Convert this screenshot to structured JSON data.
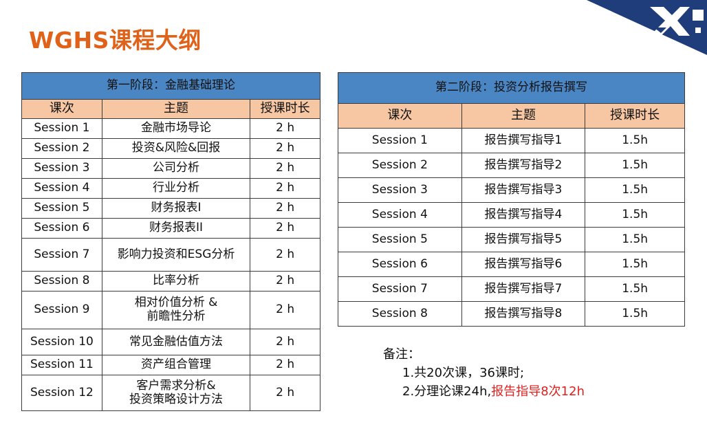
{
  "page": {
    "title": "WGHS课程大纲"
  },
  "stage1": {
    "heading": "第一阶段：金融基础理论",
    "columns": [
      "课次",
      "主题",
      "授课时长"
    ],
    "rows": [
      {
        "session": "Session 1",
        "topic": [
          "金融市场导论"
        ],
        "duration": "2 h"
      },
      {
        "session": "Session 2",
        "topic": [
          "投资&风险&回报"
        ],
        "duration": "2 h"
      },
      {
        "session": "Session 3",
        "topic": [
          "公司分析"
        ],
        "duration": "2 h"
      },
      {
        "session": "Session 4",
        "topic": [
          "行业分析"
        ],
        "duration": "2 h"
      },
      {
        "session": "Session 5",
        "topic": [
          "财务报表I"
        ],
        "duration": "2 h"
      },
      {
        "session": "Session 6",
        "topic": [
          "财务报表II"
        ],
        "duration": "2 h"
      },
      {
        "session": "Session 7",
        "topic": [
          "影响力投资和ESG分析"
        ],
        "duration": "2 h"
      },
      {
        "session": "Session 8",
        "topic": [
          "比率分析"
        ],
        "duration": "2 h"
      },
      {
        "session": "Session 9",
        "topic": [
          "相对价值分析 &",
          "前瞻性分析"
        ],
        "duration": "2 h"
      },
      {
        "session": "Session 10",
        "topic": [
          "常见金融估值方法"
        ],
        "duration": "2 h"
      },
      {
        "session": "Session 11",
        "topic": [
          "资产组合管理"
        ],
        "duration": "2 h"
      },
      {
        "session": "Session 12",
        "topic": [
          "客户需求分析&",
          "投资策略设计方法"
        ],
        "duration": "2 h"
      }
    ]
  },
  "stage2": {
    "heading": "第二阶段：投资分析报告撰写",
    "columns": [
      "课次",
      "主题",
      "授课时长"
    ],
    "rows": [
      {
        "session": "Session 1",
        "topic": "报告撰写指导1",
        "duration": "1.5h"
      },
      {
        "session": "Session 2",
        "topic": "报告撰写指导2",
        "duration": "1.5h"
      },
      {
        "session": "Session 3",
        "topic": "报告撰写指导3",
        "duration": "1.5h"
      },
      {
        "session": "Session 4",
        "topic": "报告撰写指导4",
        "duration": "1.5h"
      },
      {
        "session": "Session 5",
        "topic": "报告撰写指导5",
        "duration": "1.5h"
      },
      {
        "session": "Session 6",
        "topic": "报告撰写指导6",
        "duration": "1.5h"
      },
      {
        "session": "Session 7",
        "topic": "报告撰写指导7",
        "duration": "1.5h"
      },
      {
        "session": "Session 8",
        "topic": "报告撰写指导8",
        "duration": "1.5h"
      }
    ]
  },
  "notes": {
    "label": "备注：",
    "line1": "1.共20次课，36课时;",
    "line2_black": "2.分理论课24h,",
    "line2_red": "报告指导8次12h",
    "highlight_color": "#e02020"
  },
  "logo": {
    "primary_color": "#1f3d7a",
    "icon": "brand-x-logo"
  }
}
